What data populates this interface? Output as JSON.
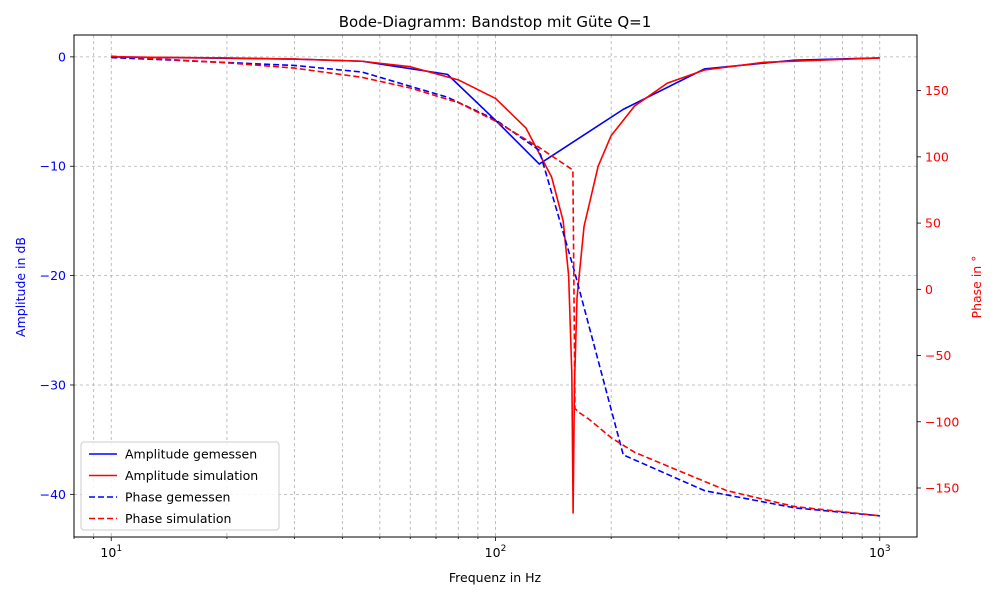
{
  "chart_data": {
    "type": "line",
    "title": "Bode-Diagramm: Bandstop mit Güte Q=1",
    "xlabel": "Frequenz in Hz",
    "ylabel_left": "Amplitude in dB",
    "ylabel_right": "Phase in °",
    "x_scale": "log",
    "xlim": [
      8,
      1250
    ],
    "ylim_left": [
      -43.9,
      2.0
    ],
    "ylim_right": [
      -187,
      192
    ],
    "x_ticks": [
      {
        "value": 10,
        "base": "10",
        "exp": "1"
      },
      {
        "value": 100,
        "base": "10",
        "exp": "2"
      },
      {
        "value": 1000,
        "base": "10",
        "exp": "3"
      }
    ],
    "y_ticks_left": [
      {
        "value": 0,
        "label": "0"
      },
      {
        "value": -10,
        "label": "−10"
      },
      {
        "value": -20,
        "label": "−20"
      },
      {
        "value": -30,
        "label": "−30"
      },
      {
        "value": -40,
        "label": "−40"
      }
    ],
    "y_ticks_right": [
      {
        "value": 150,
        "label": "150"
      },
      {
        "value": 100,
        "label": "100"
      },
      {
        "value": 50,
        "label": "50"
      },
      {
        "value": 0,
        "label": "0"
      },
      {
        "value": -50,
        "label": "−50"
      },
      {
        "value": -100,
        "label": "−100"
      },
      {
        "value": -150,
        "label": "−150"
      }
    ],
    "grid": true,
    "legend_position": "lower-left",
    "colors": {
      "measured": "#0000ff",
      "simulation": "#ff0000"
    },
    "series": [
      {
        "name": "Amplitude gemessen",
        "axis": "left",
        "style": "solid",
        "color": "#0000ff",
        "x": [
          10,
          30,
          45,
          75,
          100,
          130,
          215,
          350,
          600,
          1000
        ],
        "y": [
          0,
          -0.2,
          -0.4,
          -1.6,
          -5.8,
          -9.8,
          -4.8,
          -1.1,
          -0.3,
          -0.1
        ]
      },
      {
        "name": "Amplitude simulation",
        "axis": "left",
        "style": "solid",
        "color": "#ff0000",
        "x": [
          10,
          20,
          30,
          45,
          60,
          80,
          100,
          120,
          140,
          150,
          155,
          158,
          159.2,
          160.5,
          163,
          170,
          185,
          200,
          230,
          280,
          350,
          500,
          700,
          1000
        ],
        "y": [
          0,
          -0.1,
          -0.2,
          -0.4,
          -0.9,
          -2.1,
          -3.8,
          -6.5,
          -11.0,
          -15.0,
          -20.0,
          -29.0,
          -41.7,
          -30.0,
          -22.0,
          -15.5,
          -10.0,
          -7.2,
          -4.5,
          -2.4,
          -1.2,
          -0.5,
          -0.3,
          -0.1
        ]
      },
      {
        "name": "Phase gemessen",
        "axis": "right",
        "style": "dashed",
        "color": "#0000ff",
        "x": [
          10,
          30,
          45,
          75,
          100,
          130,
          160,
          215,
          350,
          600,
          1000
        ],
        "y": [
          175,
          169,
          164,
          145,
          128,
          105,
          15,
          -125,
          -152,
          -165,
          -171
        ]
      },
      {
        "name": "Phase simulation",
        "axis": "right",
        "style": "dashed",
        "color": "#ff0000",
        "x": [
          10,
          20,
          30,
          45,
          60,
          80,
          100,
          130,
          150,
          159,
          160,
          161,
          165,
          175,
          200,
          230,
          300,
          400,
          600,
          1000
        ],
        "y": [
          176,
          171,
          167,
          160,
          152,
          141,
          127,
          107,
          95,
          90,
          0,
          -90,
          -93,
          -98,
          -112,
          -123,
          -137,
          -152,
          -164,
          -171
        ]
      }
    ]
  }
}
